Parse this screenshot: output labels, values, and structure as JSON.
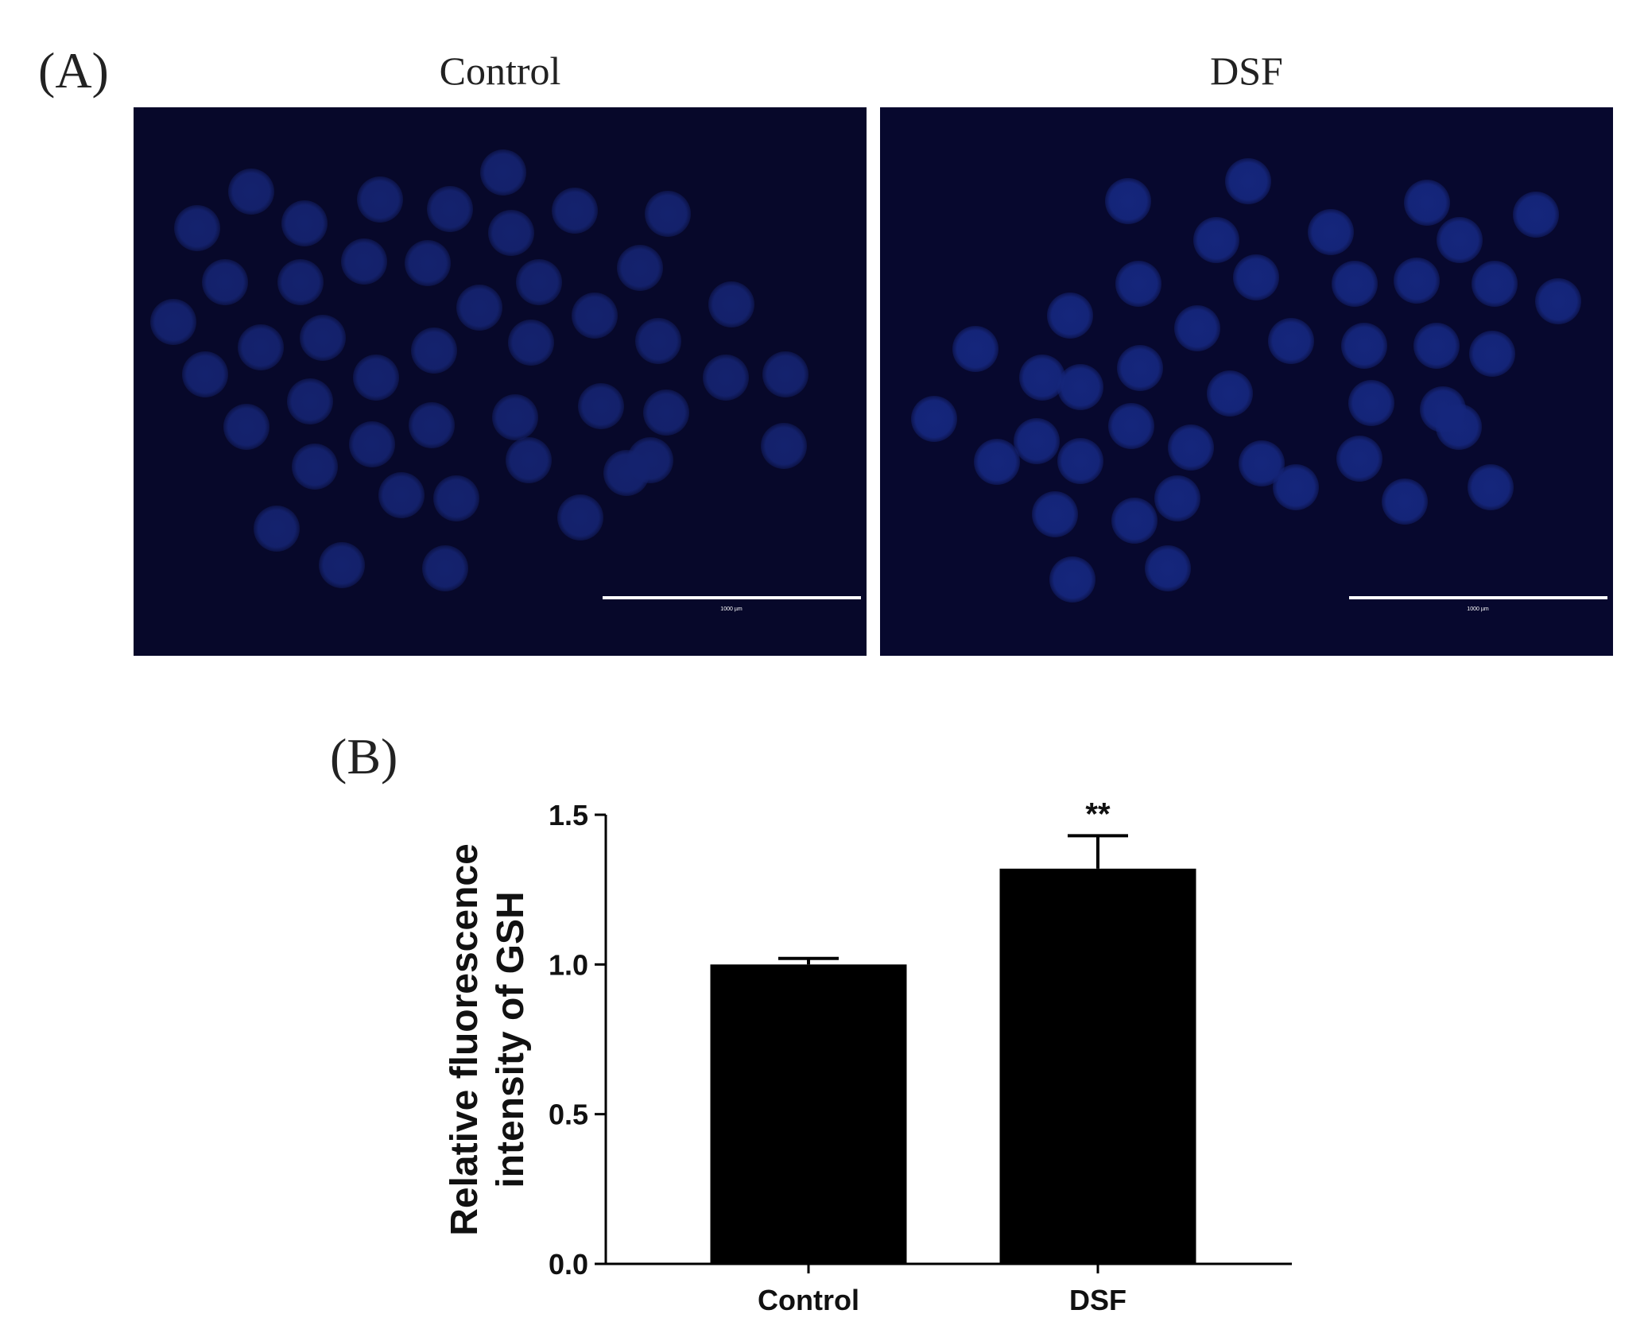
{
  "panel_a": {
    "label": "(A)",
    "images": [
      {
        "title": "Control",
        "scale_bar_text": "1000 µm",
        "background": "#07082a",
        "blob_color": "#14226e",
        "blob_count": 46
      },
      {
        "title": "DSF",
        "scale_bar_text": "1000 µm",
        "background": "#07082e",
        "blob_color": "#15267c",
        "blob_count": 44
      }
    ]
  },
  "panel_b": {
    "label": "(B)"
  },
  "chart_data": {
    "type": "bar",
    "categories": [
      "Control",
      "DSF"
    ],
    "values": [
      1.0,
      1.32
    ],
    "errors": [
      0.02,
      0.11
    ],
    "significance": [
      "",
      "**"
    ],
    "title": "",
    "xlabel": "",
    "ylabel_lines": [
      "Relative fluorescence",
      "intensity of GSH"
    ],
    "ylim": [
      0,
      1.5
    ],
    "yticks": [
      0.0,
      0.5,
      1.0,
      1.5
    ],
    "ytick_labels": [
      "0.0",
      "0.5",
      "1.0",
      "1.5"
    ],
    "bar_color": "#000000",
    "grid": false,
    "legend": "none"
  }
}
